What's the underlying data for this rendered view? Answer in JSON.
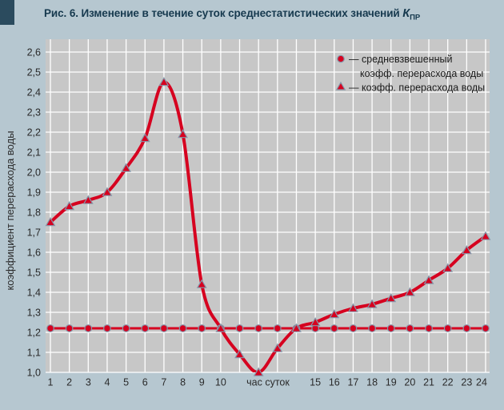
{
  "page": {
    "background": "#b6c7d0"
  },
  "header": {
    "accent_color": "#2b4b5e",
    "text_color": "#16394e",
    "title_prefix": "Рис. 6. Изменение в течение суток среднестатистических значений ",
    "k_symbol": "К",
    "k_subscript": "ПР"
  },
  "chart_data": {
    "type": "line",
    "title": "",
    "xlabel": "час суток",
    "ylabel": "коэффициент перерасхода воды",
    "x": [
      1,
      2,
      3,
      4,
      5,
      6,
      7,
      8,
      9,
      10,
      11,
      12,
      13,
      14,
      15,
      16,
      17,
      18,
      19,
      20,
      21,
      22,
      23,
      24
    ],
    "xtick_labels": [
      "1",
      "2",
      "3",
      "4",
      "5",
      "6",
      "7",
      "8",
      "9",
      "10",
      "",
      "",
      "",
      "",
      "15",
      "16",
      "17",
      "18",
      "19",
      "20",
      "21",
      "22",
      "23",
      "24"
    ],
    "xlabel_center_hour": 12.5,
    "ylim": [
      1.0,
      2.6
    ],
    "ytick_step": 0.1,
    "ytick_labels": [
      "1,0",
      "1,1",
      "1,2",
      "1,3",
      "1,4",
      "1,5",
      "1,6",
      "1,7",
      "1,8",
      "1,9",
      "2,0",
      "2,1",
      "2,2",
      "2,3",
      "2,4",
      "2,5",
      "2,6"
    ],
    "grid": true,
    "legend_position": "top-right-inside",
    "series": [
      {
        "name": "средневзвешенный коэфф. перерасхода воды",
        "marker": "dot",
        "values": [
          1.22,
          1.22,
          1.22,
          1.22,
          1.22,
          1.22,
          1.22,
          1.22,
          1.22,
          1.22,
          1.22,
          1.22,
          1.22,
          1.22,
          1.22,
          1.22,
          1.22,
          1.22,
          1.22,
          1.22,
          1.22,
          1.22,
          1.22,
          1.22
        ]
      },
      {
        "name": "коэфф. перерасхода воды",
        "marker": "triangle",
        "values": [
          1.75,
          1.83,
          1.86,
          1.9,
          2.02,
          2.17,
          2.45,
          2.19,
          1.44,
          1.22,
          1.09,
          1.0,
          1.12,
          1.22,
          1.25,
          1.29,
          1.32,
          1.34,
          1.37,
          1.4,
          1.46,
          1.52,
          1.61,
          1.68
        ]
      }
    ],
    "colors": {
      "series_red": "#d6001f",
      "marker_stroke": "#8496a9",
      "plot_bg": "#c7c7c7",
      "grid": "#ffffff",
      "tick_text": "#2a2a2a"
    }
  },
  "legend": {
    "entries": [
      {
        "marker": "dot",
        "lines": [
          "— средневзвешенный",
          "коэфф. перерасхода воды"
        ]
      },
      {
        "marker": "triangle",
        "lines": [
          "— коэфф. перерасхода воды"
        ]
      }
    ]
  }
}
